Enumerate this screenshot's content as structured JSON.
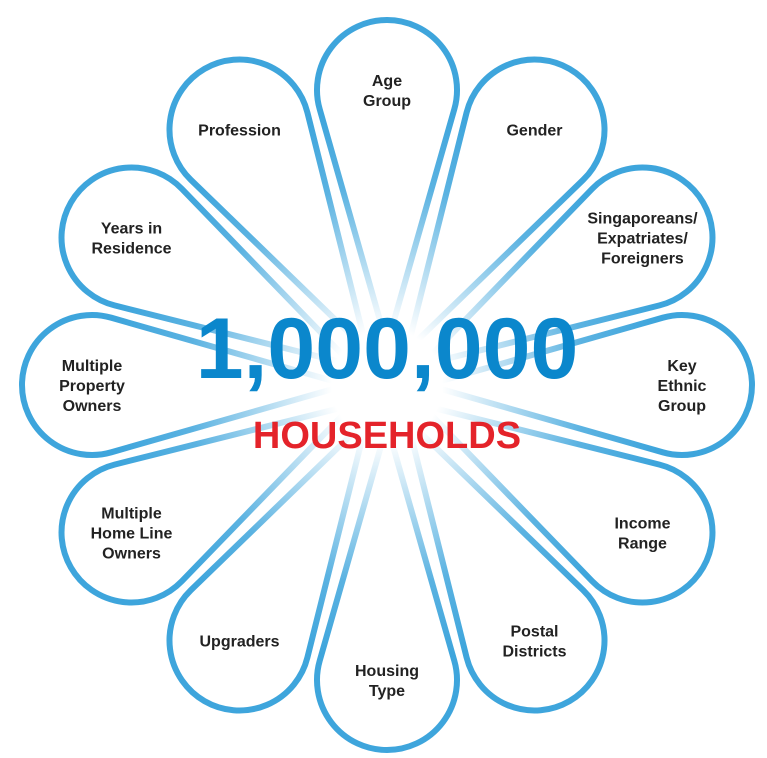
{
  "center": {
    "number": "1,000,000",
    "label": "HOUSEHOLDS"
  },
  "petals": [
    {
      "lines": [
        "Age",
        "Group"
      ]
    },
    {
      "lines": [
        "Gender"
      ]
    },
    {
      "lines": [
        "Singaporeans/",
        "Expatriates/",
        "Foreigners"
      ]
    },
    {
      "lines": [
        "Key",
        "Ethnic",
        "Group"
      ]
    },
    {
      "lines": [
        "Income",
        "Range"
      ]
    },
    {
      "lines": [
        "Postal",
        "Districts"
      ]
    },
    {
      "lines": [
        "Housing",
        "Type"
      ]
    },
    {
      "lines": [
        "Upgraders"
      ]
    },
    {
      "lines": [
        "Multiple",
        "Home Line",
        "Owners"
      ]
    },
    {
      "lines": [
        "Multiple",
        "Property",
        "Owners"
      ]
    },
    {
      "lines": [
        "Years in",
        "Residence"
      ]
    },
    {
      "lines": [
        "Profession"
      ]
    }
  ]
}
